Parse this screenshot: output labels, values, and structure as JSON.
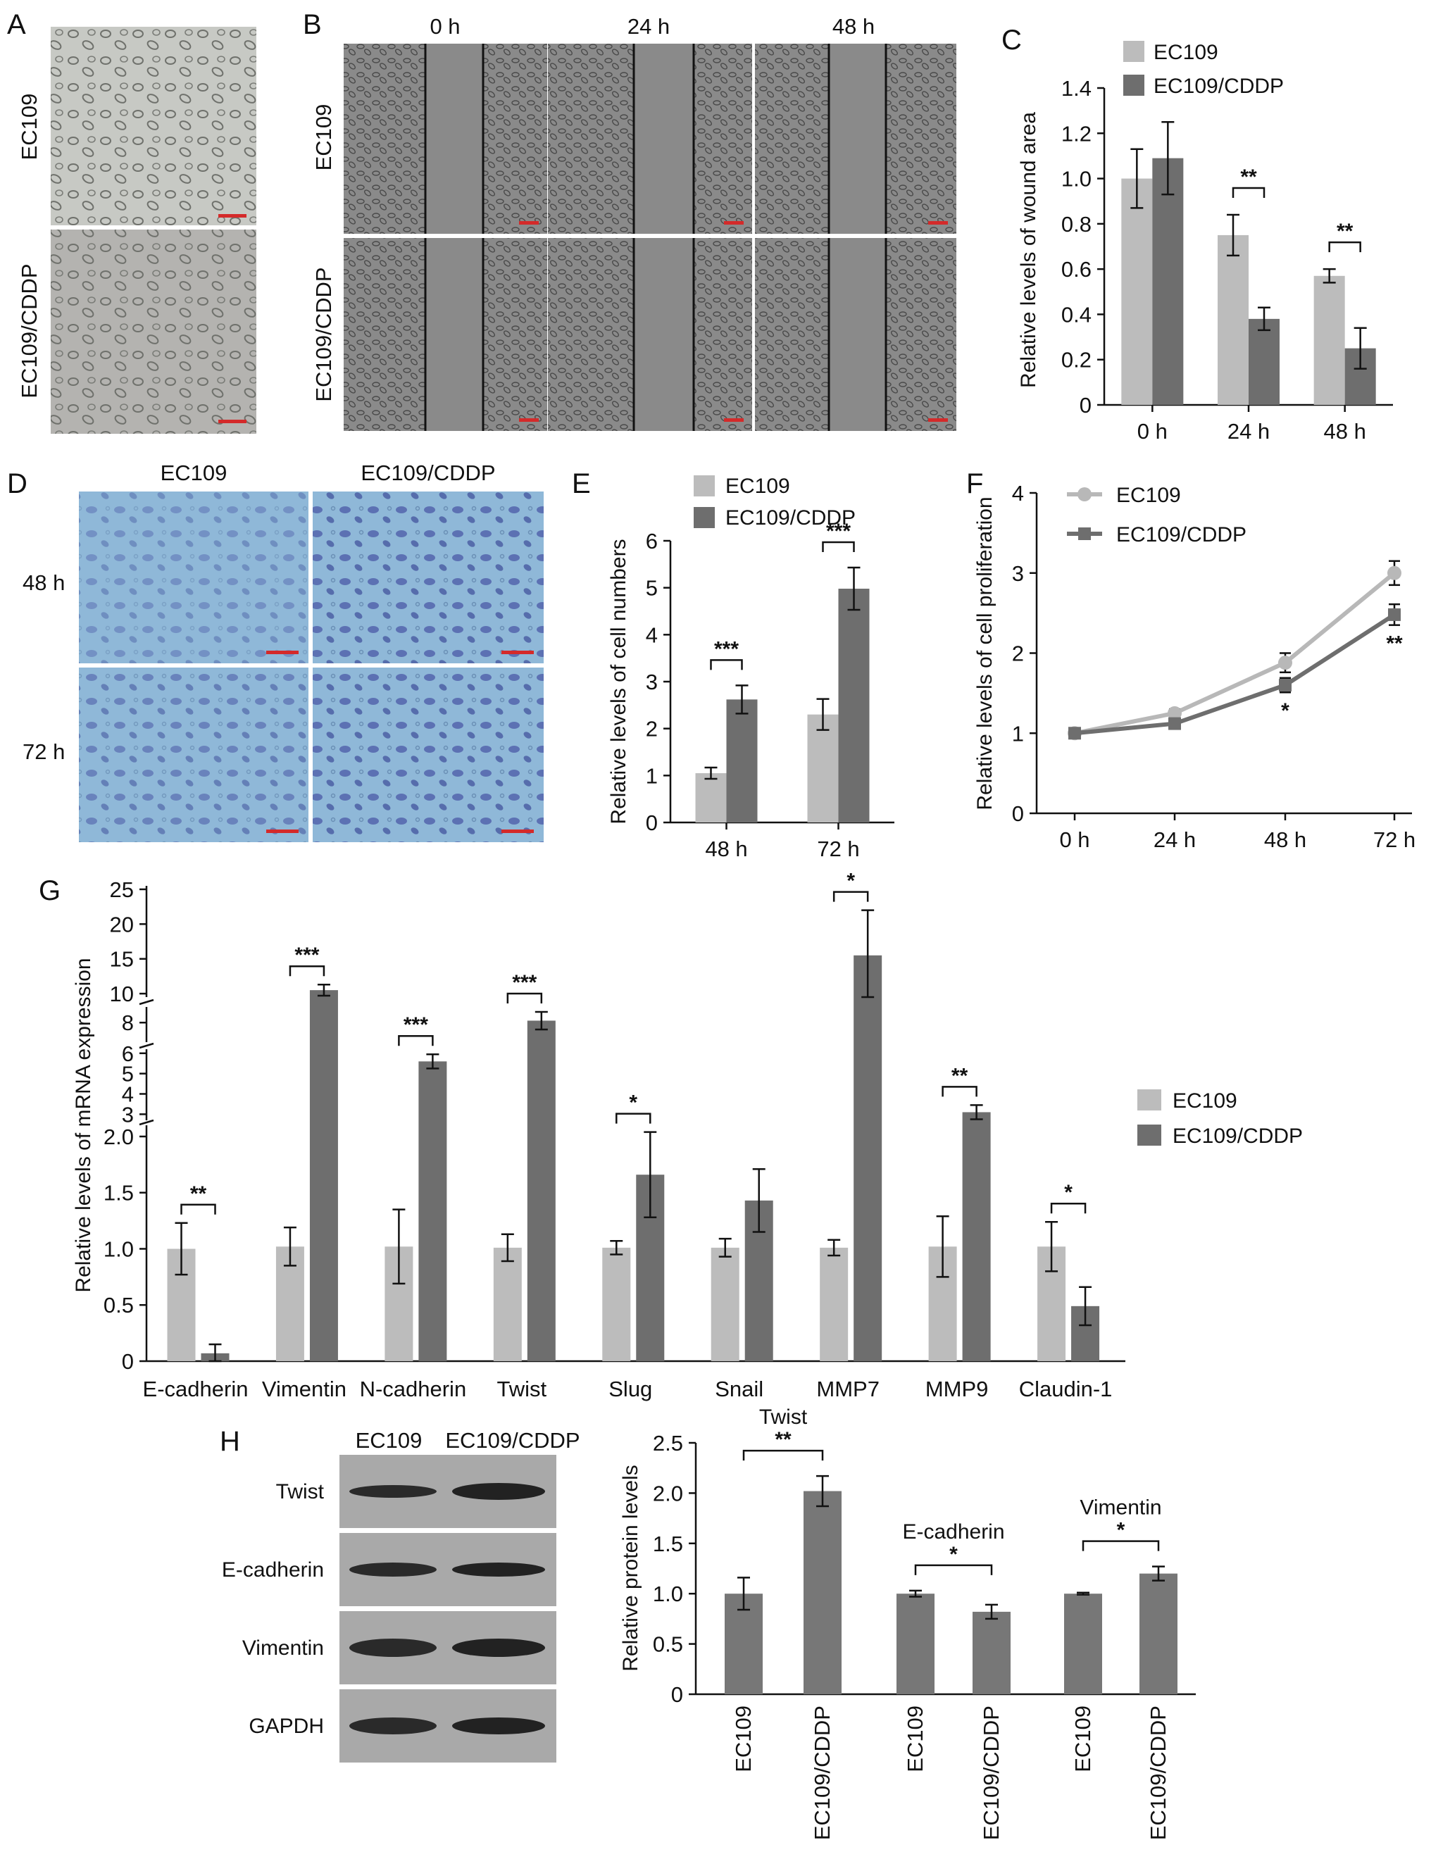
{
  "panels": {
    "A": {
      "label": "A",
      "rows": [
        "EC109",
        "EC109/CDDP"
      ],
      "fills": [
        "#c7c9c4",
        "#b4b3b0"
      ]
    },
    "B": {
      "label": "B",
      "columns": [
        "0 h",
        "24 h",
        "48 h"
      ],
      "rows": [
        "EC109",
        "EC109/CDDP"
      ]
    },
    "D": {
      "label": "D",
      "columns": [
        "EC109",
        "EC109/CDDP"
      ],
      "rows": [
        "48 h",
        "72 h"
      ]
    },
    "H": {
      "label": "H",
      "blot_columns": [
        "EC109",
        "EC109/CDDP"
      ],
      "blot_rows": [
        "Twist",
        "E-cadherin",
        "Vimentin",
        "GAPDH"
      ]
    }
  },
  "colors": {
    "light": "#bcbcbc",
    "dark": "#6e6e6e",
    "h_bars": "#777777",
    "wound": "#8a8a8a",
    "dish": "#8fb8d8",
    "scale_bar": "#d42a2a"
  },
  "chart_data": [
    {
      "panel": "C",
      "type": "bar",
      "ylabel": "Relative levels of wound area",
      "categories": [
        "0 h",
        "24 h",
        "48 h"
      ],
      "ylim": [
        0,
        1.4
      ],
      "yticks": [
        "0",
        "0.2",
        "0.4",
        "0.6",
        "0.8",
        "1.0",
        "1.2",
        "1.4"
      ],
      "legend": [
        "EC109",
        "EC109/CDDP"
      ],
      "series": [
        {
          "name": "EC109",
          "values": [
            1.0,
            0.75,
            0.57
          ],
          "errors": [
            0.13,
            0.09,
            0.03
          ]
        },
        {
          "name": "EC109/CDDP",
          "values": [
            1.09,
            0.38,
            0.25
          ],
          "errors": [
            0.16,
            0.05,
            0.09
          ]
        }
      ],
      "significance": [
        {
          "category": "24 h",
          "mark": "**"
        },
        {
          "category": "48 h",
          "mark": "**"
        }
      ]
    },
    {
      "panel": "E",
      "type": "bar",
      "ylabel": "Relative levels of cell numbers",
      "categories": [
        "48 h",
        "72 h"
      ],
      "ylim": [
        0,
        6
      ],
      "yticks": [
        "0",
        "1",
        "2",
        "3",
        "4",
        "5",
        "6"
      ],
      "legend": [
        "EC109",
        "EC109/CDDP"
      ],
      "series": [
        {
          "name": "EC109",
          "values": [
            1.05,
            2.3
          ],
          "errors": [
            0.12,
            0.33
          ]
        },
        {
          "name": "EC109/CDDP",
          "values": [
            2.62,
            4.98
          ],
          "errors": [
            0.3,
            0.45
          ]
        }
      ],
      "significance": [
        {
          "category": "48 h",
          "mark": "***"
        },
        {
          "category": "72 h",
          "mark": "***"
        }
      ]
    },
    {
      "panel": "F",
      "type": "line",
      "ylabel": "Relative levels of cell proliferation",
      "x": [
        "0 h",
        "24 h",
        "48 h",
        "72 h"
      ],
      "ylim": [
        0,
        4
      ],
      "yticks": [
        "0",
        "1",
        "2",
        "3",
        "4"
      ],
      "legend": [
        "EC109",
        "EC109/CDDP"
      ],
      "series": [
        {
          "name": "EC109",
          "values": [
            1.0,
            1.25,
            1.88,
            3.0
          ],
          "errors": [
            0.05,
            0.05,
            0.12,
            0.15
          ]
        },
        {
          "name": "EC109/CDDP",
          "values": [
            1.0,
            1.12,
            1.6,
            2.48
          ],
          "errors": [
            0.06,
            0.05,
            0.09,
            0.13
          ]
        }
      ],
      "significance": [
        {
          "x": "48 h",
          "mark": "*"
        },
        {
          "x": "72 h",
          "mark": "**"
        }
      ]
    },
    {
      "panel": "G",
      "type": "bar",
      "ylabel": "Relative levels of mRNA expression",
      "categories": [
        "E-cadherin",
        "Vimentin",
        "N-cadherin",
        "Twist",
        "Slug",
        "Snail",
        "MMP7",
        "MMP9",
        "Claudin-1"
      ],
      "yticks": [
        "0",
        "0.5",
        "1.0",
        "1.5",
        "2.0",
        "3",
        "4",
        "5",
        "6",
        "8",
        "10",
        "15",
        "20",
        "25"
      ],
      "legend": [
        "EC109",
        "EC109/CDDP"
      ],
      "series": [
        {
          "name": "EC109",
          "values": [
            1.0,
            1.02,
            1.02,
            1.01,
            1.01,
            1.01,
            1.01,
            1.02,
            1.02
          ],
          "errors": [
            0.23,
            0.17,
            0.33,
            0.12,
            0.06,
            0.08,
            0.07,
            0.27,
            0.22
          ]
        },
        {
          "name": "EC109/CDDP",
          "values": [
            0.07,
            10.5,
            5.6,
            8.1,
            1.66,
            1.43,
            15.5,
            3.1,
            0.49
          ],
          "errors": [
            0.08,
            0.8,
            0.35,
            0.45,
            0.38,
            0.28,
            6.5,
            0.35,
            0.17
          ]
        }
      ],
      "significance": [
        "**",
        "***",
        "***",
        "***",
        "*",
        "",
        "*",
        "**",
        "*"
      ]
    },
    {
      "panel": "H",
      "type": "bar",
      "ylabel": "Relative protein levels",
      "groups": [
        "Twist",
        "E-cadherin",
        "Vimentin"
      ],
      "categories": [
        "EC109",
        "EC109/CDDP"
      ],
      "ylim": [
        0,
        2.5
      ],
      "yticks": [
        "0",
        "0.5",
        "1.0",
        "1.5",
        "2.0",
        "2.5"
      ],
      "values": [
        [
          1.0,
          2.02
        ],
        [
          1.0,
          0.82
        ],
        [
          1.0,
          1.2
        ]
      ],
      "errors": [
        [
          0.16,
          0.15
        ],
        [
          0.03,
          0.07
        ],
        [
          0.01,
          0.07
        ]
      ],
      "significance": [
        "**",
        "*",
        "*"
      ]
    }
  ]
}
